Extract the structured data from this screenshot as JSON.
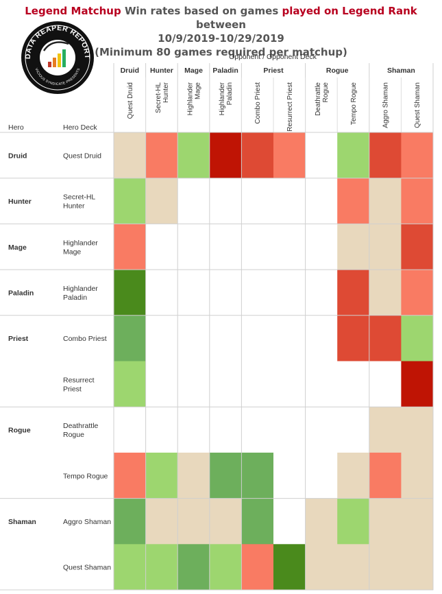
{
  "header": {
    "t1": "Legend Matchup",
    "t2": " Win rates based on games ",
    "t3": "played on Legend Rank",
    "t4": "  between",
    "line2": "10/9/2019-10/29/2019",
    "line3": "(Minimum 80 games required per matchup)"
  },
  "logo": {
    "text": "DATA REAPER REPORT",
    "subtext": "VICIOUS SYNDICATE PRESENTS"
  },
  "colors": {
    "strong_win": "#4a8a1c",
    "win": "#6daf5c",
    "slight_win": "#9dd66f",
    "even": "#e8d8bd",
    "slight_loss": "#f97b63",
    "loss": "#de4a34",
    "strong_loss": "#bf1404",
    "none": "#ffffff"
  },
  "chart_data": {
    "type": "heatmap",
    "title": "Legend Matchup Win rates based on games played on Legend Rank between 10/9/2019-10/29/2019",
    "subtitle": "(Minimum 80 games required per matchup)",
    "column_axis_label": "Opponent  /  Opponent Deck",
    "row_axis_labels": [
      "Hero",
      "Hero Deck"
    ],
    "column_classes": [
      {
        "name": "Druid",
        "span": 1
      },
      {
        "name": "Hunter",
        "span": 1
      },
      {
        "name": "Mage",
        "span": 1
      },
      {
        "name": "Paladin",
        "span": 1
      },
      {
        "name": "Priest",
        "span": 2
      },
      {
        "name": "Rogue",
        "span": 2
      },
      {
        "name": "Shaman",
        "span": 2
      }
    ],
    "columns": [
      "Quest Druid",
      "Secret-HL Hunter",
      "Highlander Mage",
      "Highlander Paladin",
      "Combo Priest",
      "Resurrect Priest",
      "Deathrattle Rogue",
      "Tempo Rogue",
      "Aggro Shaman",
      "Quest Shaman"
    ],
    "column_label_lines": [
      [
        "Quest Druid"
      ],
      [
        "Secret-HL",
        "Hunter"
      ],
      [
        "Highlander",
        "Mage"
      ],
      [
        "Highlander",
        "Paladin"
      ],
      [
        "Combo Priest"
      ],
      [
        "Resurrect Priest"
      ],
      [
        "Deathrattle",
        "Rogue"
      ],
      [
        "Tempo Rogue"
      ],
      [
        "Aggro Shaman"
      ],
      [
        "Quest Shaman"
      ]
    ],
    "row_classes": [
      {
        "name": "Druid",
        "span": 1
      },
      {
        "name": "Hunter",
        "span": 1
      },
      {
        "name": "Mage",
        "span": 1
      },
      {
        "name": "Paladin",
        "span": 1
      },
      {
        "name": "Priest",
        "span": 2
      },
      {
        "name": "Rogue",
        "span": 2
      },
      {
        "name": "Shaman",
        "span": 2
      }
    ],
    "rows": [
      {
        "label_lines": [
          "Quest Druid"
        ],
        "cells": [
          "even",
          "slight_loss",
          "slight_win",
          "strong_loss",
          "loss",
          "slight_loss",
          "none",
          "slight_win",
          "loss",
          "slight_loss"
        ]
      },
      {
        "label_lines": [
          "Secret-HL",
          "Hunter"
        ],
        "cells": [
          "slight_win",
          "even",
          "none",
          "none",
          "none",
          "none",
          "none",
          "slight_loss",
          "even",
          "slight_loss"
        ]
      },
      {
        "label_lines": [
          "Highlander",
          "Mage"
        ],
        "cells": [
          "slight_loss",
          "none",
          "none",
          "none",
          "none",
          "none",
          "none",
          "even",
          "even",
          "loss"
        ]
      },
      {
        "label_lines": [
          "Highlander",
          "Paladin"
        ],
        "cells": [
          "strong_win",
          "none",
          "none",
          "none",
          "none",
          "none",
          "none",
          "loss",
          "even",
          "slight_loss"
        ]
      },
      {
        "label_lines": [
          "Combo Priest"
        ],
        "cells": [
          "win",
          "none",
          "none",
          "none",
          "none",
          "none",
          "none",
          "loss",
          "loss",
          "slight_win"
        ]
      },
      {
        "label_lines": [
          "Resurrect",
          "Priest"
        ],
        "cells": [
          "slight_win",
          "none",
          "none",
          "none",
          "none",
          "none",
          "none",
          "none",
          "none",
          "strong_loss"
        ]
      },
      {
        "label_lines": [
          "Deathrattle",
          "Rogue"
        ],
        "cells": [
          "none",
          "none",
          "none",
          "none",
          "none",
          "none",
          "none",
          "none",
          "even",
          "even"
        ]
      },
      {
        "label_lines": [
          "Tempo Rogue"
        ],
        "cells": [
          "slight_loss",
          "slight_win",
          "even",
          "win",
          "win",
          "none",
          "none",
          "even",
          "slight_loss",
          "even"
        ]
      },
      {
        "label_lines": [
          "Aggro Shaman"
        ],
        "cells": [
          "win",
          "even",
          "even",
          "even",
          "win",
          "none",
          "even",
          "slight_win",
          "even",
          "even"
        ]
      },
      {
        "label_lines": [
          "Quest Shaman"
        ],
        "cells": [
          "slight_win",
          "slight_win",
          "win",
          "slight_win",
          "slight_loss",
          "strong_win",
          "even",
          "even",
          "even",
          "even"
        ]
      }
    ]
  }
}
